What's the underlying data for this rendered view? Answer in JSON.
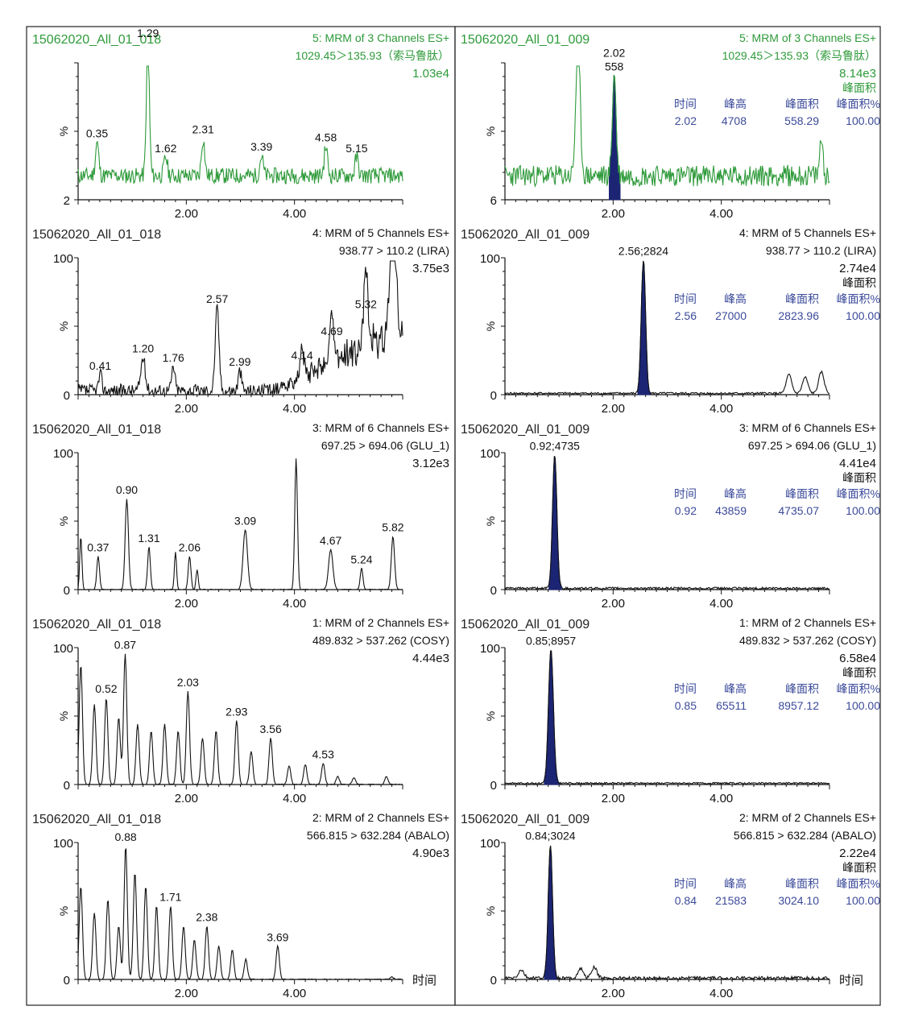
{
  "x_axis_label": "时间",
  "chart_data": [
    {
      "type": "line",
      "column": "left",
      "row": 0,
      "color": "#2e9a3a",
      "sample": "15062020_All_01_018",
      "channel": "5: MRM of 3 Channels ES+",
      "transition": "1029.45＞135.93（索马鲁肽）",
      "intensity": "1.03e4",
      "y_ticks": [],
      "y_bottom_label": "2",
      "xlim": [
        0,
        6.0
      ],
      "x_ticks": [
        "2.00",
        "4.00"
      ],
      "baseline": 18,
      "noise": 6,
      "noise_seed": 11,
      "peaks": [
        {
          "x": 0.35,
          "h": 25,
          "w": 0.03,
          "label": "0.35"
        },
        {
          "x": 1.29,
          "h": 100,
          "w": 0.028,
          "label": "1.29"
        },
        {
          "x": 1.62,
          "h": 14,
          "w": 0.03,
          "label": "1.62"
        },
        {
          "x": 2.31,
          "h": 28,
          "w": 0.03,
          "label": "2.31"
        },
        {
          "x": 3.39,
          "h": 15,
          "w": 0.03,
          "label": "3.39"
        },
        {
          "x": 4.58,
          "h": 22,
          "w": 0.03,
          "label": "4.58"
        },
        {
          "x": 5.15,
          "h": 14,
          "w": 0.03,
          "label": "5.15"
        }
      ]
    },
    {
      "type": "line",
      "column": "right",
      "row": 0,
      "color": "#2e9a3a",
      "sample": "15062020_All_01_009",
      "channel": "5: MRM of 3 Channels ES+",
      "transition": "1029.45＞135.93（索马鲁肽）",
      "intensity": "8.14e3",
      "y_ticks": [],
      "y_bottom_label": "6",
      "xlim": [
        0,
        6.0
      ],
      "x_ticks": [
        "2.00",
        "4.00"
      ],
      "baseline": 18,
      "noise": 8,
      "noise_seed": 23,
      "area_label": "峰面积",
      "peak_table": {
        "headers": [
          "时间",
          "峰高",
          "峰面积",
          "峰面积%"
        ],
        "values": [
          "2.02",
          "4708",
          "558.29",
          "100.00"
        ]
      },
      "peaks": [
        {
          "x": 1.35,
          "h": 100,
          "w": 0.04,
          "label": ""
        },
        {
          "x": 2.02,
          "h": 75,
          "w": 0.035,
          "label": "2.02\n558",
          "filled": true
        },
        {
          "x": 5.85,
          "h": 28,
          "w": 0.03,
          "label": ""
        }
      ]
    },
    {
      "type": "line",
      "column": "left",
      "row": 1,
      "color": "#111111",
      "sample": "15062020_All_01_018",
      "channel": "4: MRM of 5 Channels ES+",
      "transition": "938.77 > 110.2 (LIRA)",
      "intensity": "3.75e3",
      "y_ticks": [
        0,
        100
      ],
      "xlim": [
        0,
        6.0
      ],
      "x_ticks": [
        "2.00",
        "4.00"
      ],
      "baseline": 3,
      "noise": 5,
      "noise_seed": 37,
      "peaks": [
        {
          "x": 0.41,
          "h": 12,
          "w": 0.03,
          "label": "0.41"
        },
        {
          "x": 1.2,
          "h": 25,
          "w": 0.04,
          "label": "1.20"
        },
        {
          "x": 1.76,
          "h": 18,
          "w": 0.03,
          "label": "1.76"
        },
        {
          "x": 2.57,
          "h": 62,
          "w": 0.035,
          "label": "2.57"
        },
        {
          "x": 2.99,
          "h": 15,
          "w": 0.03,
          "label": "2.99"
        },
        {
          "x": 4.14,
          "h": 20,
          "w": 0.03,
          "label": "4.14"
        },
        {
          "x": 4.69,
          "h": 38,
          "w": 0.035,
          "label": "4.69"
        },
        {
          "x": 5.32,
          "h": 58,
          "w": 0.04,
          "label": "5.32"
        },
        {
          "x": 5.82,
          "h": 95,
          "w": 0.05,
          "label": ""
        }
      ],
      "ramp": {
        "start": 3.6,
        "end": 5.95,
        "height": 55
      }
    },
    {
      "type": "line",
      "column": "right",
      "row": 1,
      "color": "#111111",
      "sample": "15062020_All_01_009",
      "channel": "4: MRM of 5 Channels ES+",
      "transition": "938.77 > 110.2 (LIRA)",
      "intensity": "2.74e4",
      "y_ticks": [
        0,
        100
      ],
      "xlim": [
        0,
        6.0
      ],
      "x_ticks": [
        "2.00",
        "4.00"
      ],
      "baseline": 1,
      "noise": 0.8,
      "noise_seed": 41,
      "area_label": "峰面积",
      "peak_table": {
        "headers": [
          "时间",
          "峰高",
          "峰面积",
          "峰面积%"
        ],
        "values": [
          "2.56",
          "27000",
          "2823.96",
          "100.00"
        ]
      },
      "peaks": [
        {
          "x": 2.56,
          "h": 100,
          "w": 0.04,
          "label": "2.56;2824",
          "filled": true
        },
        {
          "x": 5.25,
          "h": 14,
          "w": 0.05,
          "label": ""
        },
        {
          "x": 5.55,
          "h": 12,
          "w": 0.05,
          "label": ""
        },
        {
          "x": 5.85,
          "h": 16,
          "w": 0.05,
          "label": ""
        }
      ]
    },
    {
      "type": "line",
      "column": "left",
      "row": 2,
      "color": "#111111",
      "sample": "15062020_All_01_018",
      "channel": "3: MRM of 6 Channels ES+",
      "transition": "697.25 > 694.06 (GLU_1)",
      "intensity": "3.12e3",
      "y_ticks": [
        0,
        100
      ],
      "xlim": [
        0,
        6.0
      ],
      "x_ticks": [
        "2.00",
        "4.00"
      ],
      "baseline": 0,
      "noise": 0.3,
      "noise_seed": 53,
      "peaks": [
        {
          "x": 0.05,
          "h": 40,
          "w": 0.02,
          "label": ""
        },
        {
          "x": 0.37,
          "h": 25,
          "w": 0.025,
          "label": "0.37"
        },
        {
          "x": 0.9,
          "h": 68,
          "w": 0.03,
          "label": "0.90"
        },
        {
          "x": 1.31,
          "h": 32,
          "w": 0.025,
          "label": "1.31"
        },
        {
          "x": 1.8,
          "h": 28,
          "w": 0.02,
          "label": ""
        },
        {
          "x": 2.06,
          "h": 25,
          "w": 0.025,
          "label": "2.06"
        },
        {
          "x": 2.2,
          "h": 15,
          "w": 0.02,
          "label": ""
        },
        {
          "x": 3.09,
          "h": 45,
          "w": 0.04,
          "label": "3.09"
        },
        {
          "x": 4.03,
          "h": 98,
          "w": 0.025,
          "label": ""
        },
        {
          "x": 4.67,
          "h": 30,
          "w": 0.04,
          "label": "4.67"
        },
        {
          "x": 5.24,
          "h": 16,
          "w": 0.025,
          "label": "5.24"
        },
        {
          "x": 5.82,
          "h": 40,
          "w": 0.03,
          "label": "5.82"
        }
      ]
    },
    {
      "type": "line",
      "column": "right",
      "row": 2,
      "color": "#111111",
      "sample": "15062020_All_01_009",
      "channel": "3: MRM of 6 Channels ES+",
      "transition": "697.25 > 694.06 (GLU_1)",
      "intensity": "4.41e4",
      "y_ticks": [
        0,
        100
      ],
      "xlim": [
        0,
        6.0
      ],
      "x_ticks": [
        "2.00",
        "4.00"
      ],
      "baseline": 1,
      "noise": 0.8,
      "noise_seed": 61,
      "area_label": "峰面积",
      "peak_table": {
        "headers": [
          "时间",
          "峰高",
          "峰面积",
          "峰面积%"
        ],
        "values": [
          "0.92",
          "43859",
          "4735.07",
          "100.00"
        ]
      },
      "peaks": [
        {
          "x": 0.92,
          "h": 100,
          "w": 0.04,
          "label": "0.92;4735",
          "filled": true
        }
      ]
    },
    {
      "type": "line",
      "column": "left",
      "row": 3,
      "color": "#111111",
      "sample": "15062020_All_01_018",
      "channel": "1: MRM of 2 Channels ES+",
      "transition": "489.832 > 537.262 (COSY)",
      "intensity": "4.44e3",
      "y_ticks": [
        0,
        100
      ],
      "xlim": [
        0,
        6.0
      ],
      "x_ticks": [
        "2.00",
        "4.00"
      ],
      "baseline": 0,
      "noise": 0.4,
      "noise_seed": 71,
      "peaks": [
        {
          "x": 0.05,
          "h": 90,
          "w": 0.03,
          "label": ""
        },
        {
          "x": 0.3,
          "h": 60,
          "w": 0.03,
          "label": ""
        },
        {
          "x": 0.52,
          "h": 65,
          "w": 0.03,
          "label": "0.52"
        },
        {
          "x": 0.75,
          "h": 50,
          "w": 0.03,
          "label": ""
        },
        {
          "x": 0.87,
          "h": 98,
          "w": 0.03,
          "label": "0.87"
        },
        {
          "x": 1.1,
          "h": 45,
          "w": 0.03,
          "label": ""
        },
        {
          "x": 1.35,
          "h": 40,
          "w": 0.03,
          "label": ""
        },
        {
          "x": 1.6,
          "h": 45,
          "w": 0.03,
          "label": ""
        },
        {
          "x": 1.85,
          "h": 40,
          "w": 0.03,
          "label": ""
        },
        {
          "x": 2.03,
          "h": 70,
          "w": 0.03,
          "label": "2.03"
        },
        {
          "x": 2.3,
          "h": 35,
          "w": 0.03,
          "label": ""
        },
        {
          "x": 2.55,
          "h": 40,
          "w": 0.03,
          "label": ""
        },
        {
          "x": 2.93,
          "h": 48,
          "w": 0.03,
          "label": "2.93"
        },
        {
          "x": 3.2,
          "h": 25,
          "w": 0.03,
          "label": ""
        },
        {
          "x": 3.56,
          "h": 35,
          "w": 0.03,
          "label": "3.56"
        },
        {
          "x": 3.9,
          "h": 14,
          "w": 0.03,
          "label": ""
        },
        {
          "x": 4.2,
          "h": 15,
          "w": 0.03,
          "label": ""
        },
        {
          "x": 4.53,
          "h": 16,
          "w": 0.03,
          "label": "4.53"
        },
        {
          "x": 4.8,
          "h": 6,
          "w": 0.03,
          "label": ""
        },
        {
          "x": 5.1,
          "h": 5,
          "w": 0.03,
          "label": ""
        },
        {
          "x": 5.7,
          "h": 6,
          "w": 0.03,
          "label": ""
        }
      ]
    },
    {
      "type": "line",
      "column": "right",
      "row": 3,
      "color": "#111111",
      "sample": "15062020_All_01_009",
      "channel": "1: MRM of 2 Channels ES+",
      "transition": "489.832 > 537.262 (COSY)",
      "intensity": "6.58e4",
      "y_ticks": [
        0,
        100
      ],
      "xlim": [
        0,
        6.0
      ],
      "x_ticks": [
        "2.00",
        "4.00"
      ],
      "baseline": 1,
      "noise": 0.6,
      "noise_seed": 83,
      "area_label": "峰面积",
      "peak_table": {
        "headers": [
          "时间",
          "峰高",
          "峰面积",
          "峰面积%"
        ],
        "values": [
          "0.85",
          "65511",
          "8957.12",
          "100.00"
        ]
      },
      "peaks": [
        {
          "x": 0.85,
          "h": 100,
          "w": 0.045,
          "label": "0.85;8957",
          "filled": true
        }
      ]
    },
    {
      "type": "line",
      "column": "left",
      "row": 4,
      "color": "#111111",
      "sample": "15062020_All_01_018",
      "channel": "2: MRM of 2 Channels ES+",
      "transition": "566.815 > 632.284 (ABALO)",
      "intensity": "4.90e3",
      "y_ticks": [
        0,
        100
      ],
      "xlim": [
        0,
        6.0
      ],
      "x_ticks": [
        "2.00",
        "4.00"
      ],
      "baseline": 0,
      "noise": 0.4,
      "noise_seed": 97,
      "peaks": [
        {
          "x": 0.05,
          "h": 70,
          "w": 0.03,
          "label": ""
        },
        {
          "x": 0.3,
          "h": 50,
          "w": 0.03,
          "label": ""
        },
        {
          "x": 0.55,
          "h": 60,
          "w": 0.03,
          "label": ""
        },
        {
          "x": 0.75,
          "h": 40,
          "w": 0.03,
          "label": ""
        },
        {
          "x": 0.88,
          "h": 100,
          "w": 0.03,
          "label": "0.88"
        },
        {
          "x": 1.05,
          "h": 80,
          "w": 0.03,
          "label": ""
        },
        {
          "x": 1.25,
          "h": 70,
          "w": 0.03,
          "label": ""
        },
        {
          "x": 1.45,
          "h": 55,
          "w": 0.03,
          "label": ""
        },
        {
          "x": 1.71,
          "h": 55,
          "w": 0.03,
          "label": "1.71"
        },
        {
          "x": 1.95,
          "h": 40,
          "w": 0.03,
          "label": ""
        },
        {
          "x": 2.15,
          "h": 30,
          "w": 0.03,
          "label": ""
        },
        {
          "x": 2.38,
          "h": 40,
          "w": 0.03,
          "label": "2.38"
        },
        {
          "x": 2.6,
          "h": 25,
          "w": 0.03,
          "label": ""
        },
        {
          "x": 2.85,
          "h": 22,
          "w": 0.03,
          "label": ""
        },
        {
          "x": 3.1,
          "h": 15,
          "w": 0.03,
          "label": ""
        },
        {
          "x": 3.69,
          "h": 25,
          "w": 0.03,
          "label": "3.69"
        },
        {
          "x": 5.8,
          "h": 2,
          "w": 0.03,
          "label": ""
        }
      ]
    },
    {
      "type": "line",
      "column": "right",
      "row": 4,
      "color": "#111111",
      "sample": "15062020_All_01_009",
      "channel": "2: MRM of 2 Channels ES+",
      "transition": "566.815 > 632.284 (ABALO)",
      "intensity": "2.22e4",
      "y_ticks": [
        0,
        100
      ],
      "xlim": [
        0,
        6.0
      ],
      "x_ticks": [
        "2.00",
        "4.00"
      ],
      "baseline": 1,
      "noise": 1.2,
      "noise_seed": 103,
      "area_label": "峰面积",
      "peak_table": {
        "headers": [
          "时间",
          "峰高",
          "峰面积",
          "峰面积%"
        ],
        "values": [
          "0.84",
          "21583",
          "3024.10",
          "100.00"
        ]
      },
      "peaks": [
        {
          "x": 0.84,
          "h": 100,
          "w": 0.04,
          "label": "0.84;3024",
          "filled": true
        },
        {
          "x": 0.3,
          "h": 6,
          "w": 0.05,
          "label": ""
        },
        {
          "x": 1.4,
          "h": 7,
          "w": 0.05,
          "label": ""
        },
        {
          "x": 1.65,
          "h": 8,
          "w": 0.05,
          "label": ""
        }
      ]
    }
  ],
  "colors": {
    "title_green": "#2e9a3a",
    "trace_black": "#111111",
    "fill": "#1c2573",
    "table_blue": "#3b4a9a",
    "frame": "#222222"
  }
}
